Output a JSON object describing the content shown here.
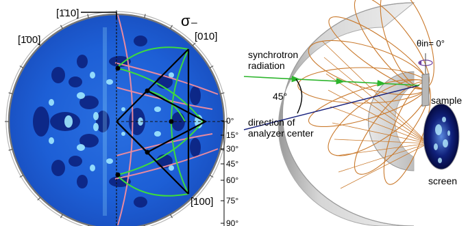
{
  "left_panel": {
    "direction_labels": {
      "bar_1_1_0": "[1̄10]",
      "bar_1_0_0": "[1̄00]",
      "d010": "[010]",
      "d100": "[100]"
    },
    "polarization_symbol": "σ₋",
    "polar_angle_ticks": [
      "0°",
      "15°",
      "30°",
      "45°",
      "60°",
      "75°",
      "90°"
    ],
    "colors": {
      "background_blue": "#1d5fd6",
      "dark_blue": "#0a1f7a",
      "bright_cyan": "#9fe8ff",
      "green_lines": "#3ddc3d",
      "pink_lines": "#e88aa0",
      "black_lines": "#000000"
    }
  },
  "right_panel": {
    "labels": {
      "beam": [
        "synchrotron",
        "radiation"
      ],
      "angle": "45°",
      "analyzer": [
        "direction of",
        "analyzer center"
      ],
      "theta": "θin= 0°",
      "sample": "sample",
      "screen": "screen"
    },
    "colors": {
      "beam_green": "#2db52d",
      "analyzer_line": "#1a237e",
      "ellipses": "#c9782a",
      "shell_gray": "#c8c8c8"
    }
  }
}
